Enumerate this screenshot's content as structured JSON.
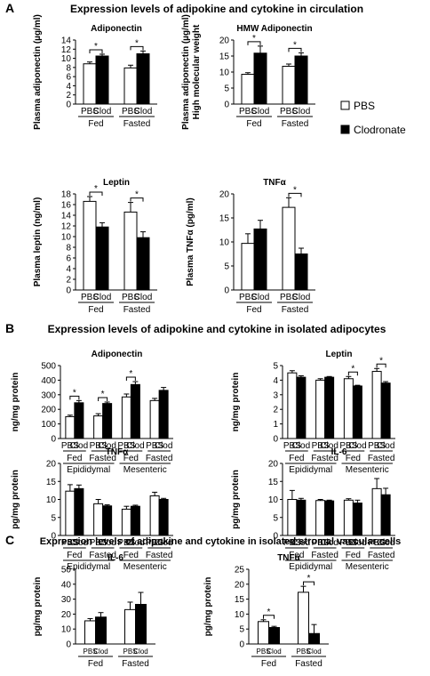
{
  "sections": [
    {
      "letter": "A",
      "title": "Expression levels of adipokine and cytokine in circulation"
    },
    {
      "letter": "B",
      "title": "Expression levels of adipokine and cytokine in isolated adipocytes"
    },
    {
      "letter": "C",
      "title": "Expression levels of adipokine and cytokine in isolated stromal vascular cells"
    }
  ],
  "legend": {
    "pbs": "PBS",
    "clodronate": "Clodronate"
  },
  "colors": {
    "pbs": "#ffffff",
    "clodronate": "#000000"
  },
  "chart_data": [
    {
      "id": "A1",
      "type": "bar",
      "title": "Adiponectin",
      "ylabel": "Plasma adiponectin (µg/ml)",
      "ylim": [
        0,
        14
      ],
      "yticks": [
        0,
        2,
        4,
        6,
        8,
        10,
        12,
        14
      ],
      "categories": [
        "PBS",
        "Clod",
        "PBS",
        "Clod"
      ],
      "groups": [
        "Fed",
        "Fasted"
      ],
      "tissues": [],
      "values": [
        8.8,
        10.5,
        7.9,
        11.0
      ],
      "errors": [
        0.4,
        0.4,
        0.6,
        0.6
      ],
      "significance": [
        [
          0,
          1
        ],
        [
          2,
          3
        ]
      ],
      "sig_label": "*"
    },
    {
      "id": "A2",
      "type": "bar",
      "title": "HMW Adiponectin",
      "ylabel": "Plasma adiponectin (µg/ml)",
      "ylabel2": "High molecular weight",
      "ylim": [
        0,
        20
      ],
      "yticks": [
        0,
        5,
        10,
        15,
        20
      ],
      "categories": [
        "PBS",
        "Clod",
        "PBS",
        "Clod"
      ],
      "groups": [
        "Fed",
        "Fasted"
      ],
      "tissues": [],
      "values": [
        9.3,
        15.9,
        11.8,
        15.0
      ],
      "errors": [
        0.5,
        2.2,
        0.7,
        1.0
      ],
      "significance": [
        [
          0,
          1
        ],
        [
          2,
          3
        ]
      ],
      "sig_label": "*"
    },
    {
      "id": "A3",
      "type": "bar",
      "title": "Leptin",
      "ylabel": "Plasma leptin (ng/ml)",
      "ylim": [
        0,
        18
      ],
      "yticks": [
        0,
        2,
        4,
        6,
        8,
        10,
        12,
        14,
        16,
        18
      ],
      "categories": [
        "PBS",
        "Clod",
        "PBS",
        "Clod"
      ],
      "groups": [
        "Fed",
        "Fasted"
      ],
      "tissues": [],
      "values": [
        16.6,
        11.8,
        14.6,
        9.8
      ],
      "errors": [
        0.9,
        0.8,
        1.8,
        1.1
      ],
      "significance": [
        [
          0,
          1
        ],
        [
          2,
          3
        ]
      ],
      "sig_label": "*"
    },
    {
      "id": "A4",
      "type": "bar",
      "title": "TNFα",
      "ylabel": "Plasma TNFα (pg/ml)",
      "ylim": [
        0,
        20
      ],
      "yticks": [
        0,
        5,
        10,
        15,
        20
      ],
      "categories": [
        "PBS",
        "Clod",
        "PBS",
        "Clod"
      ],
      "groups": [
        "Fed",
        "Fasted"
      ],
      "tissues": [],
      "values": [
        9.7,
        12.7,
        17.2,
        7.5
      ],
      "errors": [
        2.0,
        1.8,
        2.0,
        1.2
      ],
      "significance": [
        [
          2,
          3
        ]
      ],
      "sig_label": "*"
    },
    {
      "id": "B1",
      "type": "bar",
      "title": "Adiponectin",
      "ylabel": "ng/mg protein",
      "ylim": [
        0,
        500
      ],
      "yticks": [
        0,
        100,
        200,
        300,
        400,
        500
      ],
      "categories": [
        "PBS",
        "Clod",
        "PBS",
        "Clod",
        "PBS",
        "Clod",
        "PBS",
        "Clod"
      ],
      "groups": [
        "Fed",
        "Fasted",
        "Fed",
        "Fasted"
      ],
      "tissues": [
        "Epididymal",
        "Mesenteric"
      ],
      "values": [
        150,
        245,
        155,
        240,
        285,
        370,
        260,
        330
      ],
      "errors": [
        10,
        15,
        15,
        10,
        20,
        20,
        15,
        20
      ],
      "significance": [
        [
          0,
          1
        ],
        [
          2,
          3
        ],
        [
          4,
          5
        ]
      ],
      "sig_label": "*"
    },
    {
      "id": "B2",
      "type": "bar",
      "title": "Leptin",
      "ylabel": "ng/mg protein",
      "ylim": [
        0,
        5
      ],
      "yticks": [
        0,
        1,
        2,
        3,
        4,
        5
      ],
      "categories": [
        "PBS",
        "Clod",
        "PBS",
        "Clod",
        "PBS",
        "Clod",
        "PBS",
        "Clod"
      ],
      "groups": [
        "Fed",
        "Fasted",
        "Fed",
        "Fasted"
      ],
      "tissues": [
        "Epididymal",
        "Mesenteric"
      ],
      "values": [
        4.5,
        4.2,
        4.0,
        4.2,
        4.1,
        3.6,
        4.6,
        3.8
      ],
      "errors": [
        0.15,
        0.1,
        0.1,
        0.05,
        0.15,
        0.05,
        0.2,
        0.1
      ],
      "significance": [
        [
          4,
          5
        ],
        [
          6,
          7
        ]
      ],
      "sig_label": "*"
    },
    {
      "id": "B3",
      "type": "bar",
      "title": "TNFα",
      "ylabel": "pg/mg protein",
      "ylim": [
        0,
        20
      ],
      "yticks": [
        0,
        5,
        10,
        15,
        20
      ],
      "categories": [
        "PBS",
        "Clod",
        "PBS",
        "Clod",
        "PBS",
        "Clod",
        "PBS",
        "Clod"
      ],
      "groups": [
        "Fed",
        "Fasted",
        "Fed",
        "Fasted"
      ],
      "tissues": [
        "Epididymal",
        "Mesenteric"
      ],
      "values": [
        12.3,
        13.0,
        8.8,
        8.2,
        7.3,
        8.1,
        11.0,
        10.0
      ],
      "errors": [
        1.8,
        1.0,
        1.2,
        0.3,
        0.8,
        0.3,
        1.0,
        0.3
      ],
      "significance": [],
      "sig_label": "*"
    },
    {
      "id": "B4",
      "type": "bar",
      "title": "IL-6",
      "ylabel": "pg/mg protein",
      "ylim": [
        0,
        20
      ],
      "yticks": [
        0,
        5,
        10,
        15,
        20
      ],
      "categories": [
        "PBS",
        "Clod",
        "PBS",
        "Clod",
        "PBS",
        "Clod",
        "PBS",
        "Clod"
      ],
      "groups": [
        "Fed",
        "Fasted",
        "Fed",
        "Fasted"
      ],
      "tissues": [
        "Epididymal",
        "Mesenteric"
      ],
      "values": [
        10.0,
        9.8,
        9.7,
        9.6,
        9.8,
        9.0,
        13.0,
        11.3
      ],
      "errors": [
        2.5,
        0.5,
        0.3,
        0.2,
        0.4,
        0.8,
        2.8,
        1.8
      ],
      "significance": [],
      "sig_label": "*"
    },
    {
      "id": "C1",
      "type": "bar",
      "title": "IL-6",
      "ylabel": "pg/mg protein",
      "ylim": [
        0,
        50
      ],
      "yticks": [
        0,
        10,
        20,
        30,
        40,
        50
      ],
      "categories": [
        "PBS",
        "Clod",
        "PBS",
        "Clod"
      ],
      "groups": [
        "Fed",
        "Fasted"
      ],
      "tissues": [],
      "values": [
        15.5,
        18.0,
        23.0,
        26.5
      ],
      "errors": [
        1.5,
        3.0,
        5.0,
        8.0
      ],
      "significance": [],
      "sig_label": "*"
    },
    {
      "id": "C2",
      "type": "bar",
      "title": "TNFα",
      "ylabel": "pg/mg protein",
      "ylim": [
        0,
        25
      ],
      "yticks": [
        0,
        5,
        10,
        15,
        20,
        25
      ],
      "categories": [
        "PBS",
        "Clod",
        "PBS",
        "Clod"
      ],
      "groups": [
        "Fed",
        "Fasted"
      ],
      "tissues": [],
      "values": [
        7.5,
        5.5,
        17.3,
        3.5
      ],
      "errors": [
        0.6,
        0.4,
        2.0,
        3.0
      ],
      "significance": [
        [
          0,
          1
        ],
        [
          2,
          3
        ]
      ],
      "sig_label": "*"
    }
  ]
}
